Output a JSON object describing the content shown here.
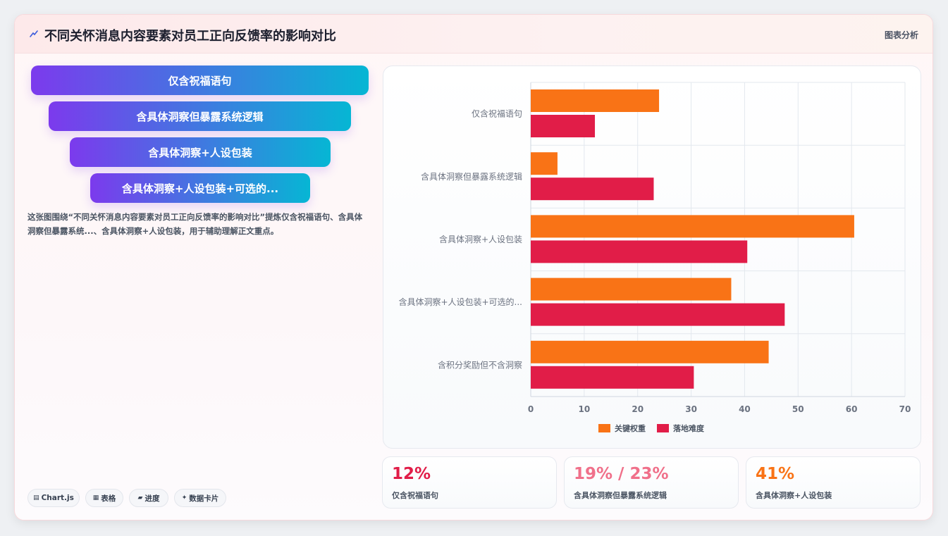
{
  "header": {
    "title": "不同关怀消息内容要素对员工正向反馈率的影响对比",
    "tag": "图表分析",
    "icon": "trend-icon"
  },
  "funnel": [
    {
      "label": "仅含祝福语句"
    },
    {
      "label": "含具体洞察但暴露系统逻辑"
    },
    {
      "label": "含具体洞察+人设包装"
    },
    {
      "label": "含具体洞察+人设包装+可选的..."
    }
  ],
  "description": "这张图围绕“不同关怀消息内容要素对员工正向反馈率的影响对比”提炼仅含祝福语句、含具体洞察但暴露系统...、含具体洞察+人设包装，用于辅助理解正文重点。",
  "chips": [
    {
      "icon": "chart-icon",
      "glyph": "▤",
      "label": "Chart.js"
    },
    {
      "icon": "table-icon",
      "glyph": "▦",
      "label": "表格"
    },
    {
      "icon": "progress-icon",
      "glyph": "▰",
      "label": "进度"
    },
    {
      "icon": "sparkle-icon",
      "glyph": "✦",
      "label": "数据卡片"
    }
  ],
  "kpis": [
    {
      "value": "12%",
      "label": "仅含祝福语句",
      "color": "#e11d48"
    },
    {
      "value": "19% / 23%",
      "label": "含具体洞察但暴露系统逻辑",
      "color": "#f0708a"
    },
    {
      "value": "41%",
      "label": "含具体洞察+人设包装",
      "color": "#f97316"
    }
  ],
  "chart_data": {
    "type": "bar",
    "orientation": "horizontal",
    "categories": [
      "仅含祝福语句",
      "含具体洞察但暴露系统逻辑",
      "含具体洞察+人设包装",
      "含具体洞察+人设包装+可选的...",
      "含积分奖励但不含洞察"
    ],
    "series": [
      {
        "name": "关键权重",
        "color": "#f97316",
        "values": [
          24,
          5,
          60.5,
          37.5,
          44.5
        ]
      },
      {
        "name": "落地难度",
        "color": "#e11d48",
        "values": [
          12,
          23,
          40.5,
          47.5,
          30.5
        ]
      }
    ],
    "xlim": [
      0,
      70
    ],
    "xticks": [
      0,
      10,
      20,
      30,
      40,
      50,
      60,
      70
    ],
    "grid": true,
    "legend": "bottom"
  }
}
